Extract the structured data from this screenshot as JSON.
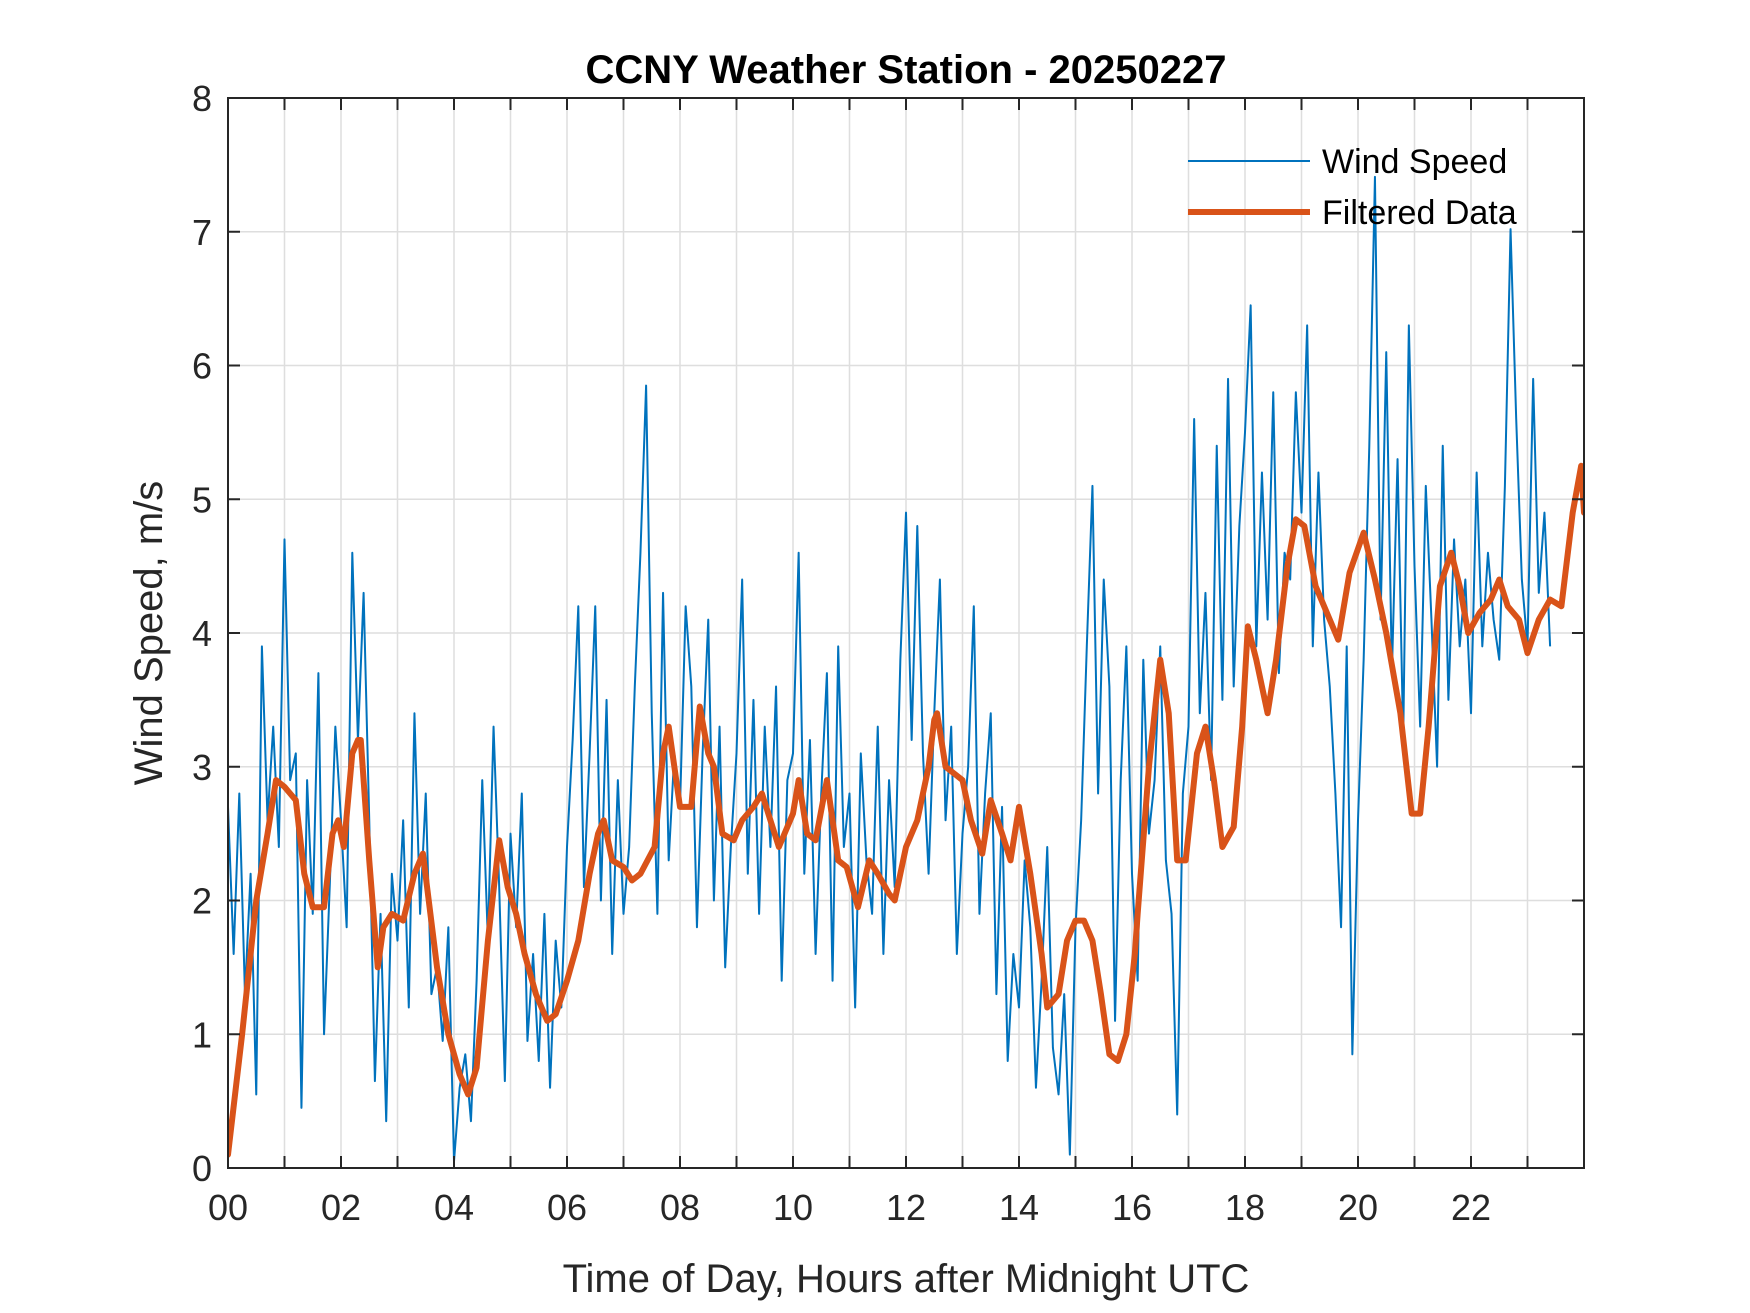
{
  "chart_data": {
    "type": "line",
    "title": "CCNY Weather Station - 20250227",
    "xlabel": "Time of Day, Hours after Midnight UTC",
    "ylabel": "Wind Speed, m/s",
    "xlim": [
      0,
      24
    ],
    "ylim": [
      0,
      8
    ],
    "x_ticks": [
      0,
      2,
      4,
      6,
      8,
      10,
      12,
      14,
      16,
      18,
      20,
      22
    ],
    "x_tick_labels": [
      "00",
      "02",
      "04",
      "06",
      "08",
      "10",
      "12",
      "14",
      "16",
      "18",
      "20",
      "22"
    ],
    "x_minor_ticks_every": 1,
    "y_ticks": [
      0,
      1,
      2,
      3,
      4,
      5,
      6,
      7,
      8
    ],
    "y_tick_labels": [
      "0",
      "1",
      "2",
      "3",
      "4",
      "5",
      "6",
      "7",
      "8"
    ],
    "grid": true,
    "legend_position": "top-right",
    "colors": {
      "wind_speed": "#0072BD",
      "filtered": "#D95319"
    },
    "series": [
      {
        "name": "Wind Speed",
        "x_unit": "hours",
        "x_step": 0.1,
        "values": [
          2.7,
          1.6,
          2.8,
          1.3,
          2.2,
          0.55,
          3.9,
          2.6,
          3.3,
          2.4,
          4.7,
          2.9,
          3.1,
          0.45,
          2.9,
          1.9,
          3.7,
          1.0,
          2.1,
          3.3,
          2.6,
          1.8,
          4.6,
          3.2,
          4.3,
          2.6,
          0.65,
          1.9,
          0.35,
          2.2,
          1.7,
          2.6,
          1.2,
          3.4,
          1.9,
          2.8,
          1.3,
          1.5,
          0.95,
          1.8,
          0.05,
          0.6,
          0.85,
          0.35,
          1.4,
          2.9,
          1.7,
          3.3,
          2.1,
          0.65,
          2.5,
          1.8,
          2.8,
          0.95,
          1.6,
          0.8,
          1.9,
          0.6,
          1.7,
          1.2,
          2.4,
          3.2,
          4.2,
          2.1,
          3.1,
          4.2,
          2.0,
          3.5,
          1.6,
          2.9,
          1.9,
          2.4,
          3.6,
          4.6,
          5.85,
          3.4,
          1.9,
          4.3,
          2.3,
          3.1,
          2.7,
          4.2,
          3.6,
          1.8,
          3.1,
          4.1,
          2.0,
          3.3,
          1.5,
          2.4,
          3.1,
          4.4,
          2.2,
          3.5,
          1.9,
          3.3,
          2.4,
          3.6,
          1.4,
          2.9,
          3.1,
          4.6,
          2.2,
          3.2,
          1.6,
          2.8,
          3.7,
          1.4,
          3.9,
          2.4,
          2.8,
          1.2,
          3.1,
          2.3,
          1.9,
          3.3,
          1.6,
          2.9,
          2.1,
          3.8,
          4.9,
          3.2,
          4.8,
          3.1,
          2.2,
          3.4,
          4.4,
          2.6,
          3.3,
          1.6,
          2.5,
          3.0,
          4.2,
          1.9,
          2.8,
          3.4,
          1.3,
          2.7,
          0.8,
          1.6,
          1.2,
          2.3,
          1.8,
          0.6,
          1.4,
          2.4,
          0.9,
          0.55,
          1.3,
          0.1,
          1.8,
          2.6,
          3.9,
          5.1,
          2.8,
          4.4,
          3.6,
          1.1,
          2.9,
          3.9,
          2.2,
          1.4,
          3.8,
          2.5,
          2.9,
          3.9,
          2.3,
          1.9,
          0.4,
          2.8,
          3.3,
          5.6,
          3.4,
          4.3,
          2.9,
          5.4,
          3.5,
          5.9,
          3.6,
          4.8,
          5.5,
          6.45,
          3.9,
          5.2,
          4.1,
          5.8,
          3.7,
          4.6,
          4.4,
          5.8,
          4.9,
          6.3,
          3.9,
          5.2,
          4.1,
          3.6,
          2.8,
          1.8,
          3.9,
          0.85,
          2.6,
          3.8,
          5.4,
          7.41,
          4.1,
          6.1,
          3.7,
          5.3,
          3.2,
          6.3,
          4.5,
          3.3,
          5.1,
          4.1,
          3.0,
          5.4,
          3.5,
          4.7,
          3.9,
          4.4,
          3.4,
          5.2,
          3.9,
          4.6,
          4.1,
          3.8,
          5.1,
          7.02,
          5.6,
          4.4,
          3.9,
          5.9,
          4.3,
          4.9,
          3.9
        ]
      },
      {
        "name": "Filtered Data",
        "x": [
          0.0,
          0.25,
          0.5,
          0.7,
          0.85,
          1.0,
          1.1,
          1.2,
          1.35,
          1.5,
          1.7,
          1.85,
          1.95,
          2.05,
          2.2,
          2.3,
          2.35,
          2.5,
          2.65,
          2.75,
          2.9,
          3.1,
          3.3,
          3.45,
          3.7,
          3.9,
          4.1,
          4.25,
          4.4,
          4.6,
          4.8,
          4.95,
          5.1,
          5.25,
          5.45,
          5.65,
          5.8,
          6.0,
          6.2,
          6.4,
          6.55,
          6.65,
          6.8,
          7.0,
          7.15,
          7.3,
          7.55,
          7.7,
          7.8,
          7.9,
          8.0,
          8.2,
          8.35,
          8.5,
          8.6,
          8.75,
          8.95,
          9.1,
          9.3,
          9.45,
          9.6,
          9.75,
          10.0,
          10.1,
          10.25,
          10.4,
          10.6,
          10.8,
          10.95,
          11.15,
          11.35,
          11.5,
          11.7,
          11.8,
          12.0,
          12.2,
          12.4,
          12.5,
          12.55,
          12.7,
          12.85,
          13.0,
          13.15,
          13.35,
          13.5,
          13.7,
          13.85,
          14.0,
          14.2,
          14.4,
          14.5,
          14.7,
          14.85,
          15.0,
          15.15,
          15.3,
          15.45,
          15.6,
          15.75,
          15.9,
          16.05,
          16.1,
          16.3,
          16.5,
          16.65,
          16.8,
          16.95,
          17.15,
          17.3,
          17.45,
          17.6,
          17.8,
          17.95,
          18.05,
          18.2,
          18.4,
          18.55,
          18.75,
          18.9,
          19.05,
          19.25,
          19.45,
          19.65,
          19.85,
          20.1,
          20.3,
          20.5,
          20.75,
          20.95,
          21.1,
          21.25,
          21.45,
          21.65,
          21.8,
          21.95,
          22.15,
          22.35,
          22.5,
          22.65,
          22.85,
          23.0,
          23.2,
          23.4,
          23.6,
          23.8,
          23.95,
          24.0
        ],
        "values": [
          0.1,
          1.0,
          2.0,
          2.5,
          2.9,
          2.85,
          2.8,
          2.75,
          2.2,
          1.95,
          1.95,
          2.5,
          2.6,
          2.4,
          3.1,
          3.2,
          3.2,
          2.3,
          1.5,
          1.8,
          1.9,
          1.85,
          2.2,
          2.35,
          1.5,
          1.0,
          0.7,
          0.55,
          0.75,
          1.7,
          2.45,
          2.1,
          1.9,
          1.6,
          1.3,
          1.1,
          1.15,
          1.4,
          1.7,
          2.2,
          2.5,
          2.6,
          2.3,
          2.25,
          2.15,
          2.2,
          2.4,
          3.1,
          3.3,
          3.0,
          2.7,
          2.7,
          3.45,
          3.1,
          3.0,
          2.5,
          2.45,
          2.6,
          2.7,
          2.8,
          2.6,
          2.4,
          2.65,
          2.9,
          2.5,
          2.45,
          2.9,
          2.3,
          2.25,
          1.95,
          2.3,
          2.2,
          2.05,
          2.0,
          2.4,
          2.6,
          3.0,
          3.35,
          3.4,
          3.0,
          2.95,
          2.9,
          2.6,
          2.35,
          2.75,
          2.5,
          2.3,
          2.7,
          2.2,
          1.6,
          1.2,
          1.3,
          1.7,
          1.85,
          1.85,
          1.7,
          1.3,
          0.85,
          0.8,
          1.0,
          1.6,
          1.9,
          3.0,
          3.8,
          3.4,
          2.3,
          2.3,
          3.1,
          3.3,
          2.9,
          2.4,
          2.55,
          3.3,
          4.05,
          3.8,
          3.4,
          3.8,
          4.5,
          4.85,
          4.8,
          4.35,
          4.15,
          3.95,
          4.45,
          4.75,
          4.4,
          4.0,
          3.4,
          2.65,
          2.65,
          3.3,
          4.35,
          4.6,
          4.35,
          4.0,
          4.15,
          4.25,
          4.4,
          4.2,
          4.1,
          3.85,
          4.1,
          4.25,
          4.2,
          4.9,
          5.25,
          4.9
        ]
      }
    ]
  }
}
